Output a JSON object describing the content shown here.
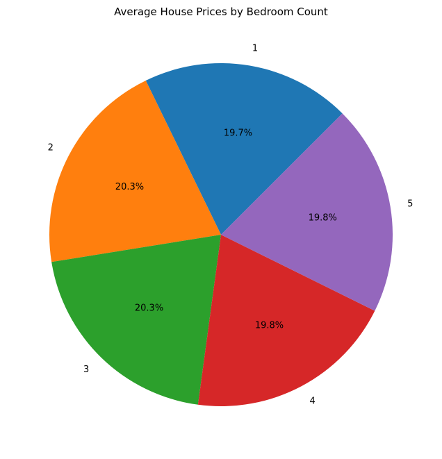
{
  "chart_data": {
    "type": "pie",
    "title": "Average House Prices by Bedroom Count",
    "categories": [
      "1",
      "2",
      "3",
      "4",
      "5"
    ],
    "values": [
      19.7,
      20.3,
      20.3,
      19.8,
      19.8
    ],
    "percent_labels": [
      "19.7%",
      "20.3%",
      "20.3%",
      "19.8%",
      "19.8%"
    ],
    "colors": [
      "#1f77b4",
      "#ff7f0e",
      "#2ca02c",
      "#d62728",
      "#9467bd"
    ],
    "start_angle_deg": 45,
    "direction": "counterclockwise",
    "legend": "none"
  }
}
